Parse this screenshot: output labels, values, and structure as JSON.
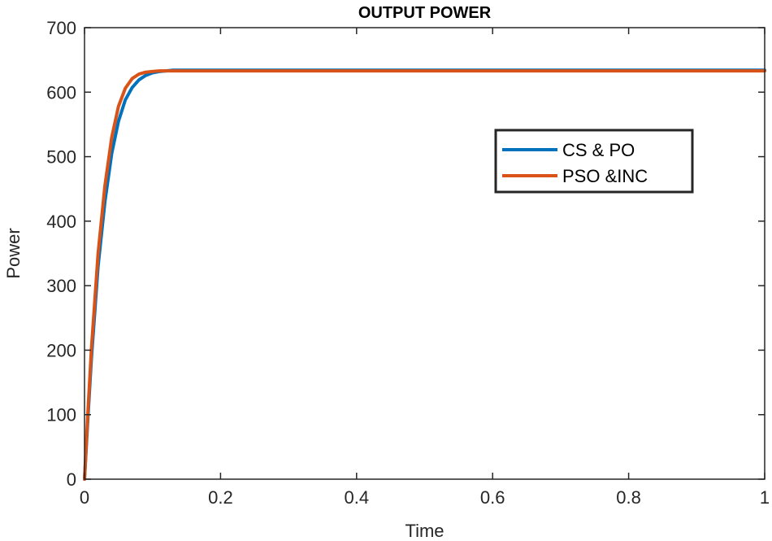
{
  "chart_data": {
    "type": "line",
    "title": "OUTPUT POWER",
    "xlabel": "Time",
    "ylabel": "Power",
    "xlim": [
      0,
      1
    ],
    "ylim": [
      0,
      700
    ],
    "x_ticks": [
      "0",
      "0.2",
      "0.4",
      "0.6",
      "0.8",
      "1"
    ],
    "y_ticks": [
      "0",
      "100",
      "200",
      "300",
      "400",
      "500",
      "600",
      "700"
    ],
    "grid": false,
    "legend_position": "upper-right",
    "series": [
      {
        "name": "CS & PO",
        "color": "#0072BD",
        "x": [
          0,
          0.005,
          0.01,
          0.02,
          0.03,
          0.04,
          0.05,
          0.06,
          0.07,
          0.08,
          0.09,
          0.1,
          0.11,
          0.12,
          0.13,
          0.15,
          0.2,
          0.3,
          0.4,
          0.5,
          0.6,
          0.7,
          0.8,
          0.9,
          1.0
        ],
        "y": [
          0,
          95,
          185,
          330,
          430,
          505,
          555,
          588,
          607,
          619,
          626,
          630,
          632,
          633,
          634,
          634,
          634,
          634,
          634,
          634,
          634,
          634,
          634,
          634,
          634
        ]
      },
      {
        "name": "PSO &INC",
        "color": "#D95319",
        "x": [
          0,
          0.005,
          0.01,
          0.02,
          0.03,
          0.04,
          0.05,
          0.06,
          0.07,
          0.08,
          0.09,
          0.1,
          0.11,
          0.12,
          0.13,
          0.15,
          0.2,
          0.3,
          0.4,
          0.5,
          0.6,
          0.7,
          0.8,
          0.9,
          1.0
        ],
        "y": [
          0,
          105,
          200,
          350,
          455,
          530,
          578,
          606,
          621,
          628,
          631,
          632,
          633,
          633,
          633,
          633,
          633,
          633,
          633,
          633,
          633,
          633,
          633,
          633,
          633
        ]
      }
    ]
  }
}
